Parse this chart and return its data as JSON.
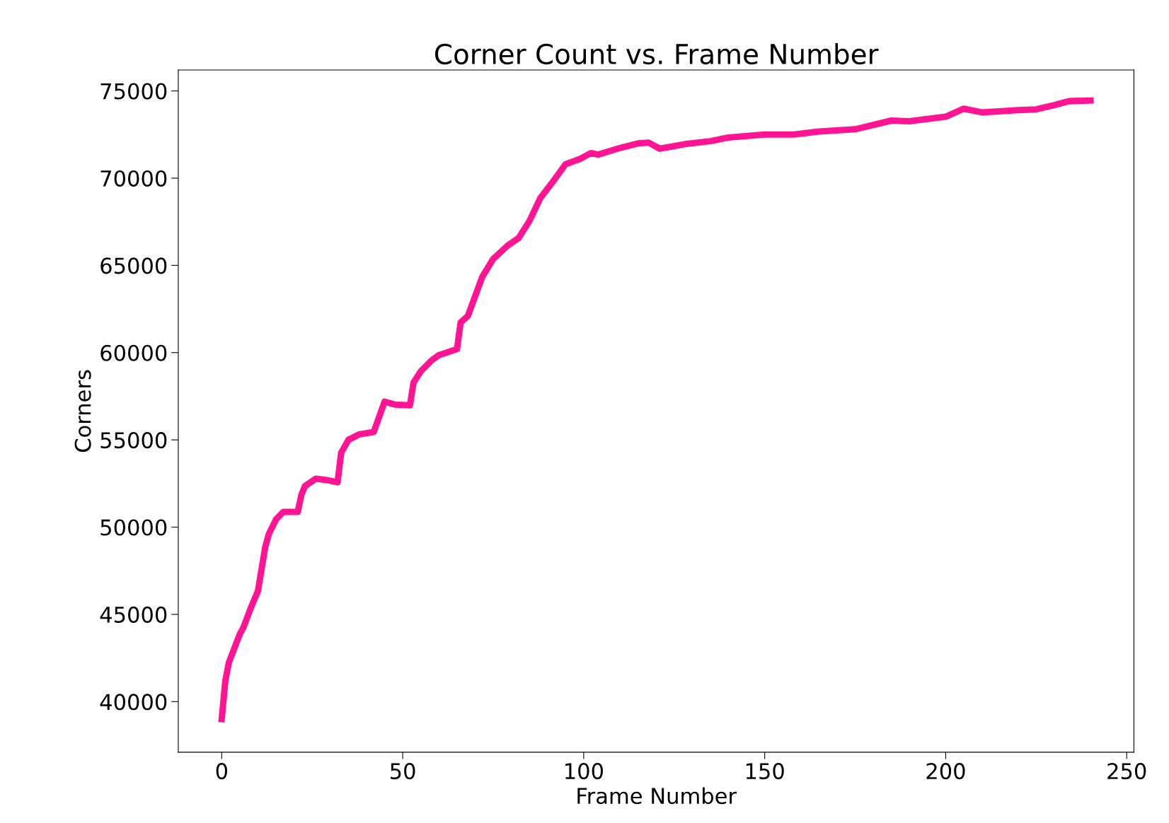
{
  "chart_data": {
    "type": "line",
    "title": "Corner Count vs. Frame Number",
    "xlabel": "Frame Number",
    "ylabel": "Corners",
    "x": [
      0,
      1,
      2,
      5,
      6,
      8,
      10,
      12,
      13,
      15,
      17,
      21,
      22,
      23,
      26,
      29,
      32,
      33,
      35,
      38,
      42,
      45,
      48,
      52,
      53,
      55,
      58,
      60,
      65,
      66,
      68,
      72,
      75,
      79,
      82,
      85,
      88,
      91,
      95,
      99,
      102,
      104,
      110,
      115,
      118,
      121,
      128,
      135,
      140,
      150,
      158,
      165,
      175,
      185,
      190,
      195,
      200,
      205,
      210,
      220,
      225,
      230,
      234,
      240
    ],
    "series": [
      {
        "color": "#ff1493",
        "values": [
          39000,
          41200,
          42260,
          43870,
          44250,
          45350,
          46330,
          48830,
          49600,
          50440,
          50870,
          50870,
          51840,
          52350,
          52780,
          52700,
          52570,
          54260,
          55000,
          55320,
          55450,
          57190,
          57020,
          56980,
          58290,
          58930,
          59560,
          59860,
          60200,
          61730,
          62100,
          64350,
          65370,
          66140,
          66560,
          67540,
          68850,
          69660,
          70800,
          71100,
          71440,
          71350,
          71730,
          71990,
          72030,
          71690,
          71950,
          72120,
          72330,
          72500,
          72500,
          72670,
          72800,
          73300,
          73260,
          73390,
          73520,
          73980,
          73770,
          73900,
          73940,
          74190,
          74410,
          74450
        ]
      }
    ],
    "xlim": [
      -12,
      252
    ],
    "xticks": [
      0,
      50,
      100,
      150,
      200,
      250
    ],
    "ylim": [
      37100,
      76200
    ],
    "yticks": [
      40000,
      45000,
      50000,
      55000,
      60000,
      65000,
      70000,
      75000
    ],
    "grid": false,
    "legend": false,
    "line_style": "solid",
    "marker": "none"
  }
}
